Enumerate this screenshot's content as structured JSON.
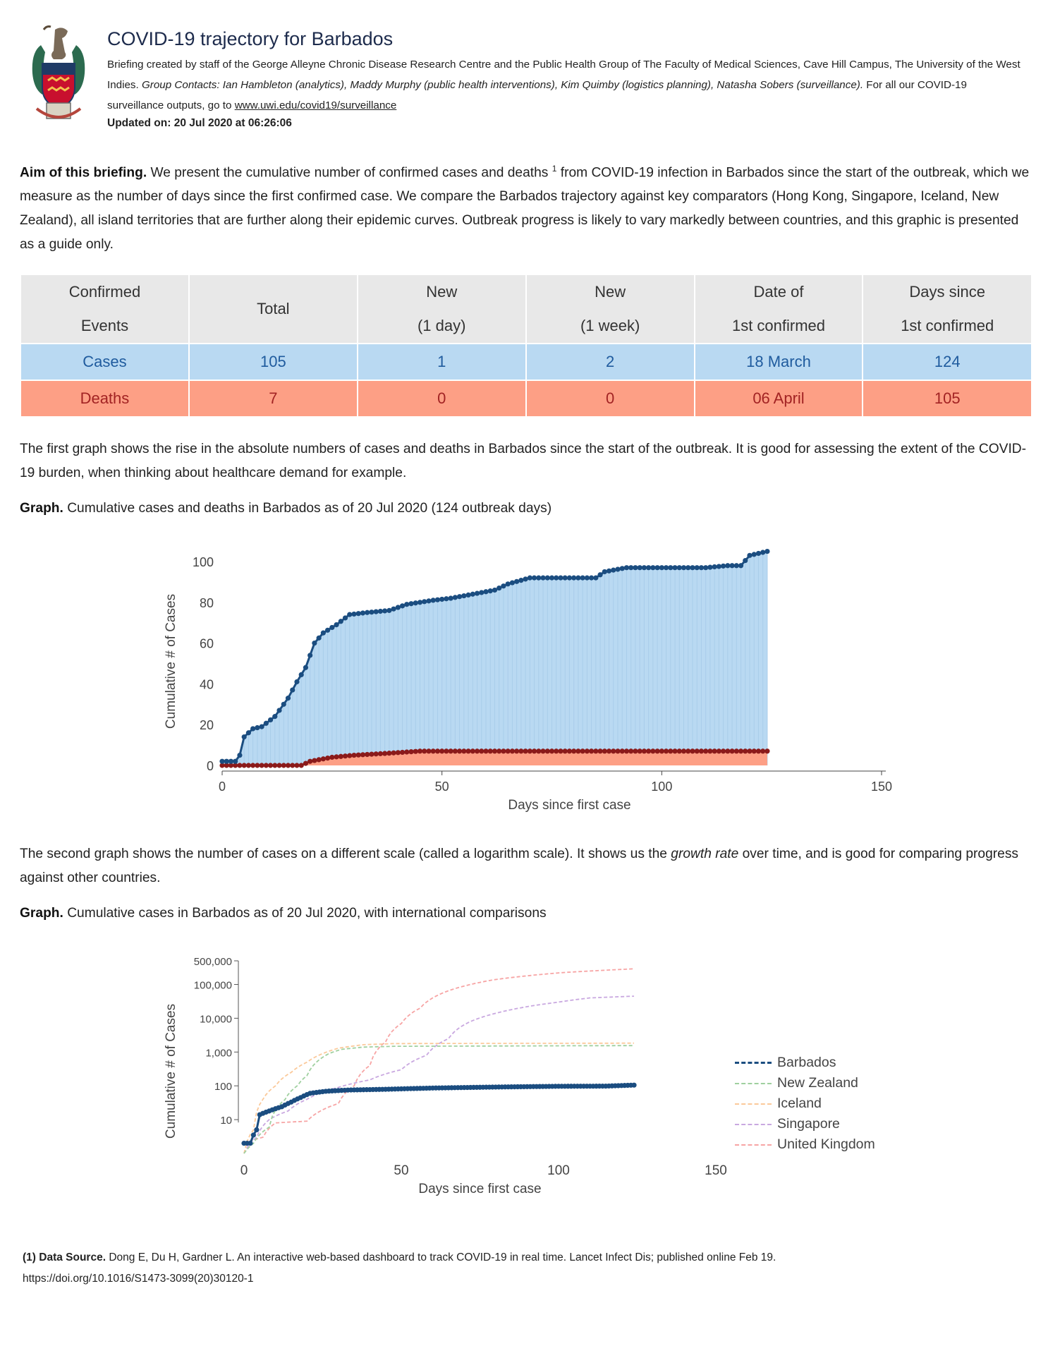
{
  "header": {
    "title": "COVID-19 trajectory for Barbados",
    "byline": "Briefing created by staff of the George Alleyne Chronic Disease Research Centre and the Public Health Group of The Faculty of Medical Sciences, Cave Hill Campus, The University of the West Indies.",
    "contacts": "Group Contacts: Ian Hambleton (analytics), Maddy Murphy (public health interventions), Kim Quimby (logistics planning), Natasha Sobers (surveillance).",
    "outputs_text": "For all our COVID-19 surveillance outputs, go to",
    "outputs_link": "www.uwi.edu/covid19/surveillance",
    "updated": "Updated on: 20 Jul 2020 at 06:26:06"
  },
  "aim": {
    "lead": "Aim of this briefing.",
    "text_before_note": "We present the cumulative number of confirmed cases and deaths",
    "footnote_mark": "1",
    "text_after_note": "from COVID-19 infection in Barbados since the start of the outbreak, which we measure as the number of days since the first confirmed case. We compare the Barbados trajectory against key comparators (Hong Kong, Singapore, Iceland, New Zealand), all island territories that are further along their epidemic curves. Outbreak progress is likely to vary markedly between countries, and this graphic is presented as a guide only."
  },
  "summary_table": {
    "headers": [
      {
        "line1": "Confirmed",
        "line2": "Events"
      },
      {
        "line1": "Total",
        "line2": ""
      },
      {
        "line1": "New",
        "line2": "(1 day)"
      },
      {
        "line1": "New",
        "line2": "(1 week)"
      },
      {
        "line1": "Date of",
        "line2": "1st confirmed"
      },
      {
        "line1": "Days since",
        "line2": "1st confirmed"
      }
    ],
    "cases": {
      "label": "Cases",
      "total": "105",
      "new_day": "1",
      "new_week": "2",
      "first_date": "18 March",
      "days_since": "124"
    },
    "deaths": {
      "label": "Deaths",
      "total": "7",
      "new_day": "0",
      "new_week": "0",
      "first_date": "06 April",
      "days_since": "105"
    }
  },
  "para1": "The first graph shows the rise in the absolute numbers of cases and deaths in Barbados since the start of the outbreak. It is good for assessing the extent of the COVID-19 burden, when thinking about healthcare demand for example.",
  "graph1_caption": {
    "lead": "Graph.",
    "text": "Cumulative cases and deaths in Barbados as of 20 Jul 2020 (124 outbreak days)"
  },
  "para2": {
    "before": "The second graph shows the number of cases on a different scale (called a logarithm scale). It shows us the",
    "italic": "growth rate",
    "after": "over time, and is good for comparing progress against other countries."
  },
  "graph2_caption": {
    "lead": "Graph.",
    "text": "Cumulative cases in Barbados as of 20 Jul 2020, with international comparisons"
  },
  "footer": {
    "lead": "(1) Data Source.",
    "text": "Dong E, Du H, Gardner L. An interactive web-based dashboard to track COVID-19 in real time. Lancet Infect Dis; published online Feb 19.",
    "doi": "https://doi.org/10.1016/S1473-3099(20)30120-1"
  },
  "colors": {
    "cases_line": "#1b4d80",
    "cases_fill": "#b9d9f2",
    "deaths_line": "#8b1a1a",
    "deaths_fill": "#fd9f85",
    "new_zealand": "#9fd09f",
    "iceland": "#fbc99a",
    "singapore": "#c9a8e0",
    "united_kingdom": "#f7a4a4"
  },
  "chart_data": [
    {
      "type": "area",
      "xlabel": "Days since first case",
      "ylabel": "Cumulative # of Cases",
      "xlim": [
        0,
        150
      ],
      "ylim": [
        0,
        100
      ],
      "xticks": [
        "0",
        "50",
        "100",
        "150"
      ],
      "yticks": [
        "0",
        "20",
        "40",
        "60",
        "80",
        "100"
      ],
      "grid": false,
      "series": [
        {
          "key": "cases",
          "points": [
            [
              0,
              2
            ],
            [
              3,
              2
            ],
            [
              4,
              5
            ],
            [
              5,
              14
            ],
            [
              7,
              18
            ],
            [
              9,
              19
            ],
            [
              12,
              24
            ],
            [
              15,
              33
            ],
            [
              17,
              41
            ],
            [
              19,
              48
            ],
            [
              21,
              60
            ],
            [
              23,
              65
            ],
            [
              26,
              69
            ],
            [
              29,
              74
            ],
            [
              33,
              75
            ],
            [
              38,
              76
            ],
            [
              42,
              79
            ],
            [
              48,
              81
            ],
            [
              52,
              82
            ],
            [
              57,
              84
            ],
            [
              62,
              86
            ],
            [
              65,
              89
            ],
            [
              70,
              92
            ],
            [
              75,
              92
            ],
            [
              85,
              92
            ],
            [
              87,
              95
            ],
            [
              92,
              97
            ],
            [
              100,
              97
            ],
            [
              110,
              97
            ],
            [
              115,
              98
            ],
            [
              118,
              98
            ],
            [
              120,
              103
            ],
            [
              124,
              105
            ]
          ]
        },
        {
          "key": "deaths",
          "points": [
            [
              0,
              0
            ],
            [
              18,
              0
            ],
            [
              20,
              2
            ],
            [
              25,
              4
            ],
            [
              30,
              5
            ],
            [
              38,
              6
            ],
            [
              45,
              7
            ],
            [
              124,
              7
            ]
          ]
        }
      ]
    },
    {
      "type": "line",
      "xlabel": "Days since first case",
      "ylabel": "Cumulative # of Cases",
      "y_scale": "log",
      "xlim": [
        0,
        150
      ],
      "ylim": [
        1,
        500000
      ],
      "xticks": [
        "0",
        "50",
        "100",
        "150"
      ],
      "yticks": [
        "10",
        "100",
        "1,000",
        "10,000",
        "100,000",
        "500,000"
      ],
      "legend": "right",
      "series": [
        {
          "name": "Barbados",
          "key": "barbados",
          "points": [
            [
              0,
              2
            ],
            [
              2,
              2
            ],
            [
              4,
              5
            ],
            [
              5,
              14
            ],
            [
              8,
              18
            ],
            [
              12,
              24
            ],
            [
              15,
              33
            ],
            [
              18,
              45
            ],
            [
              21,
              60
            ],
            [
              26,
              69
            ],
            [
              33,
              75
            ],
            [
              45,
              79
            ],
            [
              60,
              86
            ],
            [
              80,
              92
            ],
            [
              100,
              97
            ],
            [
              115,
              98
            ],
            [
              124,
              105
            ]
          ]
        },
        {
          "name": "New Zealand",
          "key": "new_zealand",
          "points": [
            [
              0,
              1
            ],
            [
              3,
              2
            ],
            [
              8,
              6
            ],
            [
              13,
              39
            ],
            [
              17,
              102
            ],
            [
              20,
              200
            ],
            [
              23,
              500
            ],
            [
              27,
              900
            ],
            [
              31,
              1200
            ],
            [
              38,
              1400
            ],
            [
              48,
              1480
            ],
            [
              70,
              1500
            ],
            [
              124,
              1550
            ]
          ]
        },
        {
          "name": "Iceland",
          "key": "iceland",
          "points": [
            [
              0,
              1
            ],
            [
              3,
              5
            ],
            [
              6,
              40
            ],
            [
              10,
              100
            ],
            [
              15,
              250
            ],
            [
              20,
              500
            ],
            [
              25,
              900
            ],
            [
              30,
              1300
            ],
            [
              38,
              1650
            ],
            [
              48,
              1780
            ],
            [
              70,
              1800
            ],
            [
              124,
              1830
            ]
          ]
        },
        {
          "name": "Singapore",
          "key": "singapore",
          "points": [
            [
              0,
              1
            ],
            [
              4,
              3
            ],
            [
              8,
              10
            ],
            [
              14,
              18
            ],
            [
              20,
              40
            ],
            [
              30,
              90
            ],
            [
              40,
              150
            ],
            [
              50,
              300
            ],
            [
              58,
              800
            ],
            [
              65,
              2500
            ],
            [
              72,
              8000
            ],
            [
              80,
              14000
            ],
            [
              90,
              22000
            ],
            [
              100,
              30000
            ],
            [
              110,
              40000
            ],
            [
              124,
              45000
            ]
          ]
        },
        {
          "name": "United Kingdom",
          "key": "united_kingdom",
          "points": [
            [
              0,
              2
            ],
            [
              6,
              3
            ],
            [
              10,
              8
            ],
            [
              20,
              9
            ],
            [
              30,
              30
            ],
            [
              35,
              100
            ],
            [
              40,
              400
            ],
            [
              45,
              2000
            ],
            [
              50,
              7000
            ],
            [
              56,
              20000
            ],
            [
              62,
              50000
            ],
            [
              70,
              90000
            ],
            [
              80,
              140000
            ],
            [
              90,
              180000
            ],
            [
              100,
              220000
            ],
            [
              110,
              250000
            ],
            [
              124,
              290000
            ]
          ]
        }
      ]
    }
  ]
}
